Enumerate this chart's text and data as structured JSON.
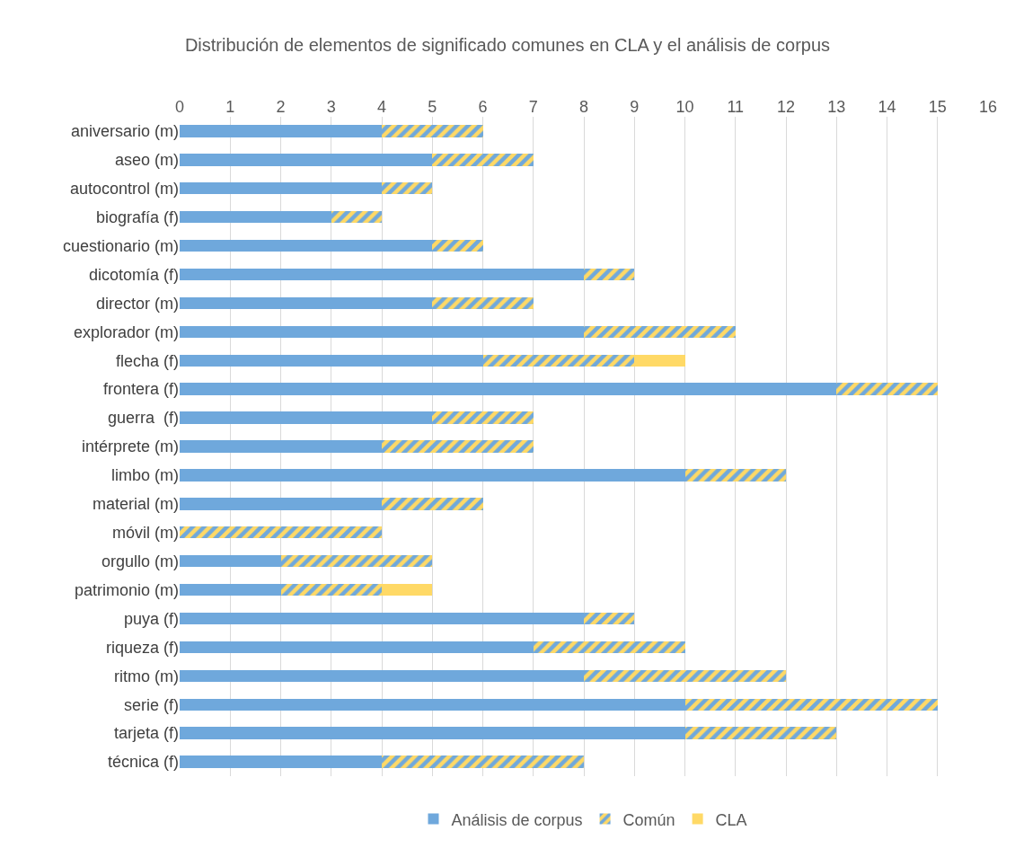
{
  "chart_data": {
    "type": "bar",
    "orientation": "horizontal",
    "stacked": true,
    "title": "Distribución de elementos de significado comunes en CLA y el análisis de corpus",
    "categories": [
      "aniversario (m)",
      "aseo (m)",
      "autocontrol (m)",
      "biografía (f)",
      "cuestionario (m)",
      "dicotomía (f)",
      "director (m)",
      "explorador (m)",
      "flecha (f)",
      "frontera (f)",
      "guerra  (f)",
      "intérprete (m)",
      "limbo (m)",
      "material (m)",
      "móvil (m)",
      "orgullo (m)",
      "patrimonio (m)",
      "puya (f)",
      "riqueza (f)",
      "ritmo (m)",
      "serie (f)",
      "tarjeta (f)",
      "técnica (f)"
    ],
    "series": [
      {
        "name": "Análisis de corpus",
        "color": "#6fa8dc",
        "values": [
          4,
          5,
          4,
          3,
          5,
          8,
          5,
          8,
          6,
          13,
          5,
          4,
          10,
          4,
          0,
          2,
          2,
          8,
          7,
          8,
          10,
          10,
          4
        ]
      },
      {
        "name": "Común",
        "color": "#ffd966",
        "values": [
          2,
          2,
          1,
          1,
          1,
          1,
          2,
          3,
          3,
          2,
          2,
          3,
          2,
          2,
          4,
          3,
          2,
          1,
          3,
          4,
          5,
          3,
          4
        ]
      },
      {
        "name": "CLA",
        "color": "#ffd966",
        "values": [
          0,
          0,
          0,
          0,
          0,
          0,
          0,
          0,
          1,
          0,
          0,
          0,
          0,
          0,
          0,
          0,
          1,
          0,
          0,
          0,
          0,
          0,
          0
        ]
      }
    ],
    "xlim": [
      0,
      16
    ],
    "xticks": [
      0,
      1,
      2,
      3,
      4,
      5,
      6,
      7,
      8,
      9,
      10,
      11,
      12,
      13,
      14,
      15,
      16
    ],
    "grid": "x",
    "legend": "bottom"
  }
}
